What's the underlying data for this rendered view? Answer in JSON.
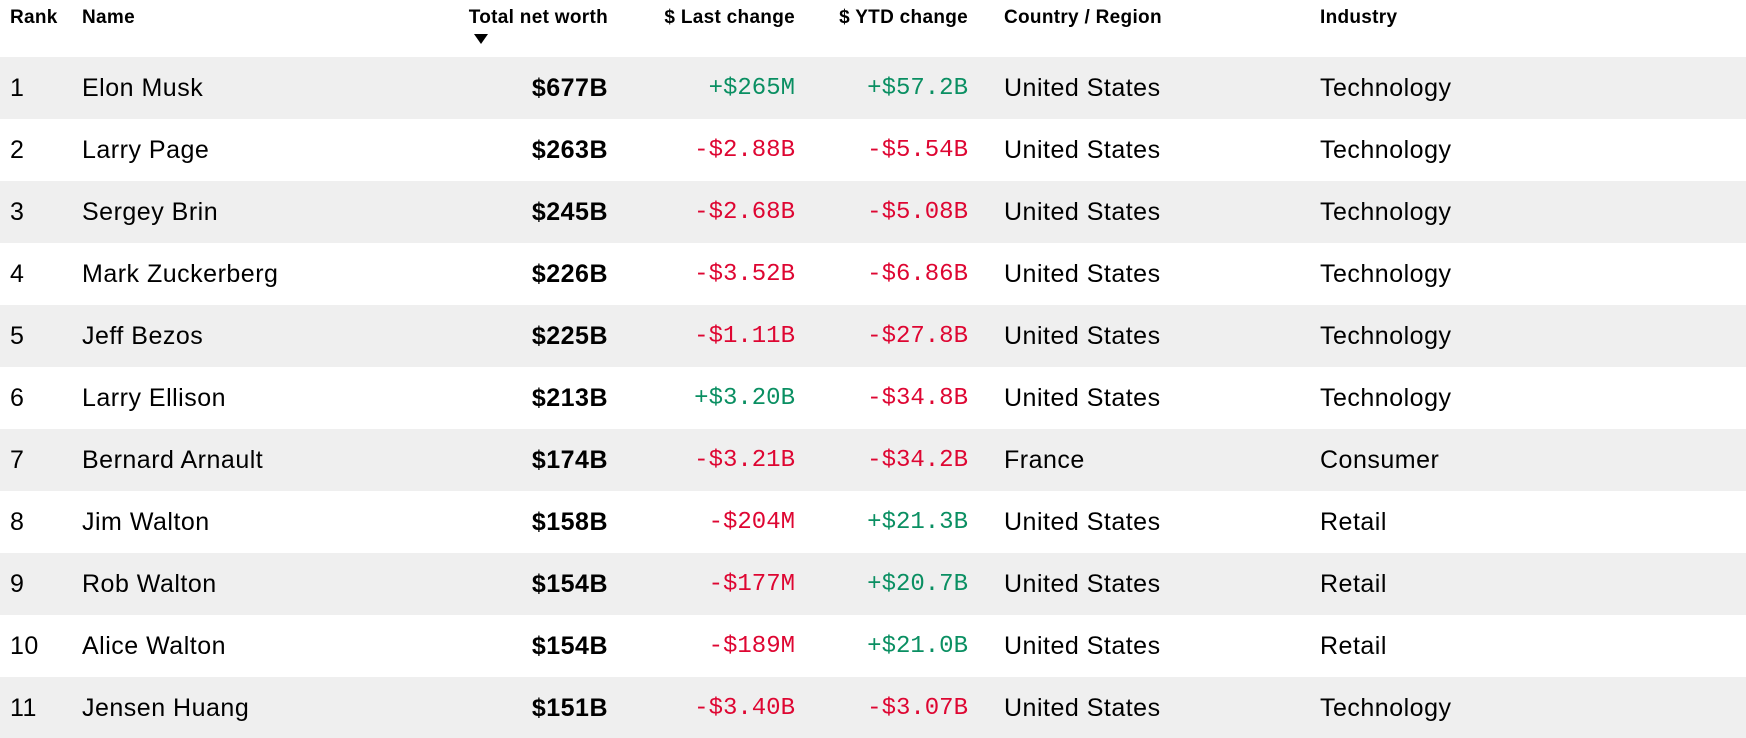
{
  "table": {
    "columns": [
      {
        "key": "rank",
        "label": "Rank",
        "align": "left"
      },
      {
        "key": "name",
        "label": "Name",
        "align": "left"
      },
      {
        "key": "net_worth",
        "label": "Total net worth",
        "align": "right"
      },
      {
        "key": "last_change",
        "label": "$ Last change",
        "align": "right"
      },
      {
        "key": "ytd_change",
        "label": "$ YTD change",
        "align": "right"
      },
      {
        "key": "country",
        "label": "Country / Region",
        "align": "left"
      },
      {
        "key": "industry",
        "label": "Industry",
        "align": "left"
      }
    ],
    "sort": {
      "column": "net_worth",
      "direction": "desc",
      "icon": "triangle-down"
    },
    "rows": [
      {
        "rank": "1",
        "name": "Elon Musk",
        "net_worth": "$677B",
        "last_change": "+$265M",
        "ytd_change": "+$57.2B",
        "country": "United States",
        "industry": "Technology"
      },
      {
        "rank": "2",
        "name": "Larry Page",
        "net_worth": "$263B",
        "last_change": "-$2.88B",
        "ytd_change": "-$5.54B",
        "country": "United States",
        "industry": "Technology"
      },
      {
        "rank": "3",
        "name": "Sergey Brin",
        "net_worth": "$245B",
        "last_change": "-$2.68B",
        "ytd_change": "-$5.08B",
        "country": "United States",
        "industry": "Technology"
      },
      {
        "rank": "4",
        "name": "Mark Zuckerberg",
        "net_worth": "$226B",
        "last_change": "-$3.52B",
        "ytd_change": "-$6.86B",
        "country": "United States",
        "industry": "Technology"
      },
      {
        "rank": "5",
        "name": "Jeff Bezos",
        "net_worth": "$225B",
        "last_change": "-$1.11B",
        "ytd_change": "-$27.8B",
        "country": "United States",
        "industry": "Technology"
      },
      {
        "rank": "6",
        "name": "Larry Ellison",
        "net_worth": "$213B",
        "last_change": "+$3.20B",
        "ytd_change": "-$34.8B",
        "country": "United States",
        "industry": "Technology"
      },
      {
        "rank": "7",
        "name": "Bernard Arnault",
        "net_worth": "$174B",
        "last_change": "-$3.21B",
        "ytd_change": "-$34.2B",
        "country": "France",
        "industry": "Consumer"
      },
      {
        "rank": "8",
        "name": "Jim Walton",
        "net_worth": "$158B",
        "last_change": "-$204M",
        "ytd_change": "+$21.3B",
        "country": "United States",
        "industry": "Retail"
      },
      {
        "rank": "9",
        "name": "Rob Walton",
        "net_worth": "$154B",
        "last_change": "-$177M",
        "ytd_change": "+$20.7B",
        "country": "United States",
        "industry": "Retail"
      },
      {
        "rank": "10",
        "name": "Alice Walton",
        "net_worth": "$154B",
        "last_change": "-$189M",
        "ytd_change": "+$21.0B",
        "country": "United States",
        "industry": "Retail"
      },
      {
        "rank": "11",
        "name": "Jensen Huang",
        "net_worth": "$151B",
        "last_change": "-$3.40B",
        "ytd_change": "-$3.07B",
        "country": "United States",
        "industry": "Technology"
      }
    ]
  },
  "colors": {
    "positive": "#0a8f62",
    "negative": "#de0632",
    "row_stripe": "#efefef",
    "text": "#000000"
  }
}
